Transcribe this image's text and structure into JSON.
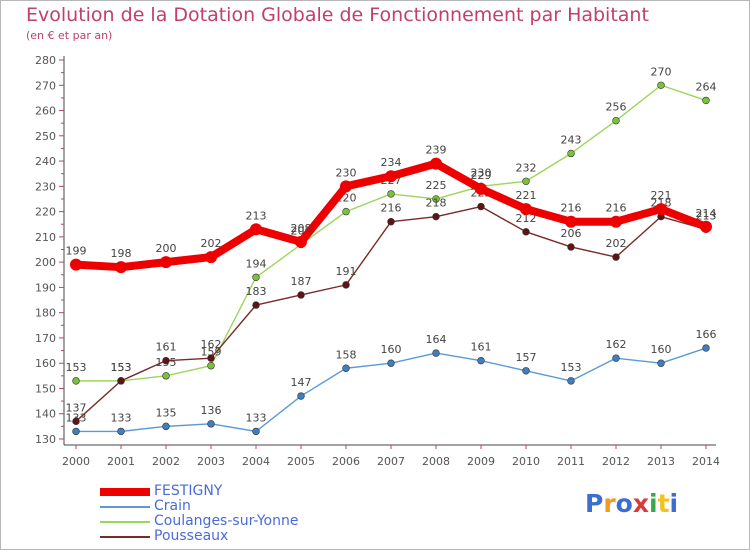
{
  "header": {
    "title": "Evolution de la Dotation Globale de Fonctionnement par Habitant",
    "subtitle": "(en € et par an)"
  },
  "logo": {
    "text": "Proxiti",
    "colors": [
      "#3a6fd0",
      "#f29a1e",
      "#3a6fd0",
      "#d93a3a",
      "#3aa84a",
      "#f2c21e",
      "#3a6fd0"
    ]
  },
  "legend": {
    "items": [
      "FESTIGNY",
      "Crain",
      "Coulanges-sur-Yonne",
      "Pousseaux"
    ]
  },
  "chart_data": {
    "type": "line",
    "categories": [
      "2000",
      "2001",
      "2002",
      "2003",
      "2004",
      "2005",
      "2006",
      "2007",
      "2008",
      "2009",
      "2010",
      "2011",
      "2012",
      "2013",
      "2014"
    ],
    "ylim": [
      130,
      280
    ],
    "yticks": [
      130,
      140,
      150,
      160,
      170,
      180,
      190,
      200,
      210,
      220,
      230,
      240,
      250,
      260,
      270,
      280
    ],
    "grid": false,
    "legend_position": "bottom-left",
    "series": [
      {
        "name": "Crain",
        "color": "#5b9bd5",
        "marker": "#3f7fbf",
        "values": [
          133,
          133,
          135,
          136,
          133,
          147,
          158,
          160,
          164,
          161,
          157,
          153,
          162,
          160,
          166
        ]
      },
      {
        "name": "Coulanges-sur-Yonne",
        "color": "#9ad65a",
        "marker": "#7bc23c",
        "values": [
          153,
          153,
          155,
          159,
          194,
          207,
          220,
          227,
          225,
          230,
          232,
          243,
          256,
          270,
          264
        ]
      },
      {
        "name": "Pousseaux",
        "color": "#7a2a2a",
        "marker": "#5e1414",
        "values": [
          137,
          153,
          161,
          162,
          183,
          187,
          191,
          216,
          218,
          222,
          212,
          206,
          202,
          218,
          213
        ]
      },
      {
        "name": "FESTIGNY",
        "color": "#ee0000",
        "marker": "#ee0000",
        "values": [
          199,
          198,
          200,
          202,
          213,
          208,
          230,
          234,
          239,
          229,
          221,
          216,
          216,
          221,
          214
        ]
      }
    ]
  }
}
